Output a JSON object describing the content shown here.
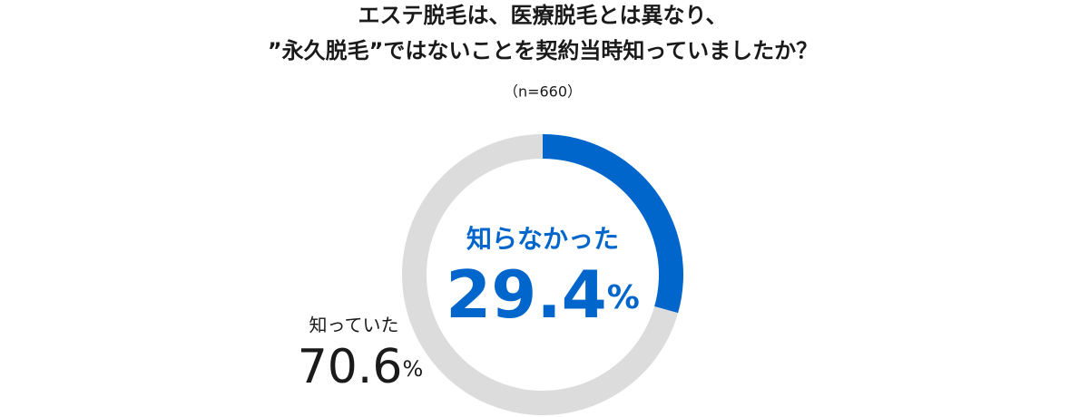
{
  "chart_data": {
    "type": "donut",
    "title": [
      "エステ脱毛は、医療脱毛とは異なり、",
      "”永久脱毛”ではないことを契約当時知っていましたか？"
    ],
    "subtitle": "（n=660）",
    "categories": [
      "知らなかった",
      "知っていた"
    ],
    "values": [
      29.4,
      70.6
    ],
    "value_labels": [
      "29.4%",
      "70.6%"
    ],
    "series_colors": [
      "#0066cc",
      "#dcdcdc"
    ],
    "label_colors": [
      "#0066cc",
      "#1a1a1a"
    ]
  }
}
